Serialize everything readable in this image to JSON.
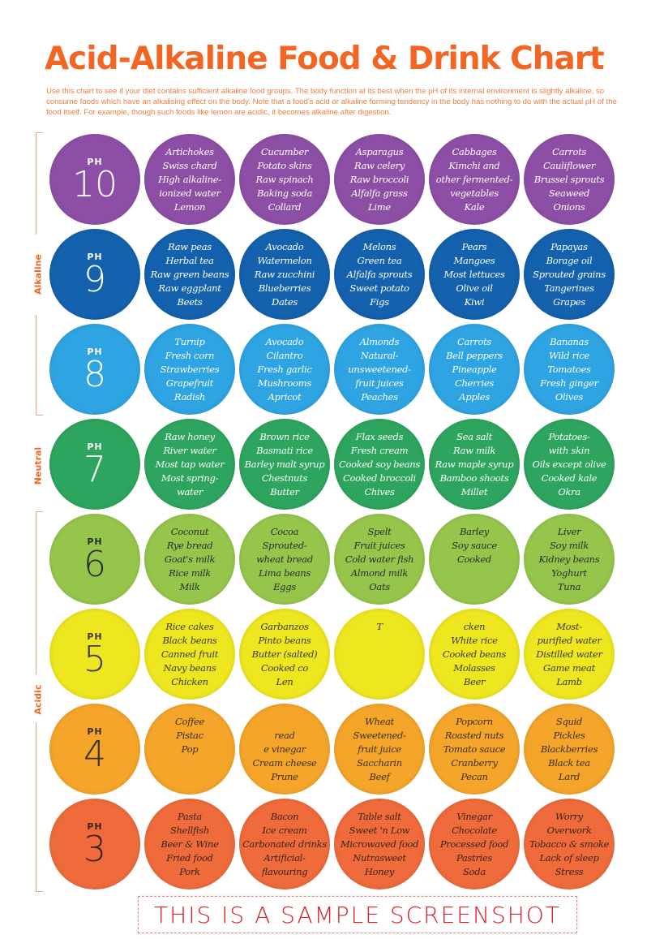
{
  "title": "Acid-Alkaline Food & Drink Chart",
  "intro": "Use this chart to see if your diet contains sufficient alkaline food groups. The body function at its best when the pH of its internal environment is slightly alkaline, so consume foods which have an alkalising effect on the body. Note that a food's acid or alkaline forming tendency in the body has nothing to do with the actual pH of the food itself. For example, though such foods like lemon are acidic, it becomes alkaline after digestion.",
  "side_labels": {
    "alkaline": "Alkaline",
    "neutral": "Neutral",
    "acidic": "Acidic"
  },
  "ph_prefix": "PH",
  "watermark": "THIS IS A SAMPLE SCREENSHOT",
  "rows": [
    {
      "ph": "10",
      "color": "#8d4fa6",
      "text_color": "#ffffff",
      "cells": [
        [
          "Artichokes",
          "Swiss chard",
          "High alkaline-",
          "ionized water",
          "Lemon"
        ],
        [
          "Cucumber",
          "Potato skins",
          "Raw spinach",
          "Baking soda",
          "Collard"
        ],
        [
          "Asparagus",
          "Raw celery",
          "Raw broccoli",
          "Alfalfa grass",
          "Lime"
        ],
        [
          "Cabbages",
          "Kimchi and",
          "other fermented-",
          "vegetables",
          "Kale"
        ],
        [
          "Carrots",
          "Cauliflower",
          "Brussel sprouts",
          "Seaweed",
          "Onions"
        ]
      ]
    },
    {
      "ph": "9",
      "color": "#1461ad",
      "text_color": "#ffffff",
      "cells": [
        [
          "Raw peas",
          "Herbal tea",
          "Raw green beans",
          "Raw eggplant",
          "Beets"
        ],
        [
          "Avocado",
          "Watermelon",
          "Raw zucchini",
          "Blueberries",
          "Dates"
        ],
        [
          "Melons",
          "Green tea",
          "Alfalfa sprouts",
          "Sweet potato",
          "Figs"
        ],
        [
          "Pears",
          "Mangoes",
          "Most lettuces",
          "Olive oil",
          "Kiwi"
        ],
        [
          "Papayas",
          "Borage oil",
          "Sprouted grains",
          "Tangerines",
          "Grapes"
        ]
      ]
    },
    {
      "ph": "8",
      "color": "#2fa4e2",
      "text_color": "#ffffff",
      "cells": [
        [
          "Turnip",
          "Fresh corn",
          "Strawberries",
          "Grapefruit",
          "Radish"
        ],
        [
          "Avocado",
          "Cilantro",
          "Fresh garlic",
          "Mushrooms",
          "Apricot"
        ],
        [
          "Almonds",
          "Natural-",
          "unsweetened-",
          "fruit juices",
          "Peaches"
        ],
        [
          "Carrots",
          "Bell peppers",
          "Pineapple",
          "Cherries",
          "Apples"
        ],
        [
          "Bananas",
          "Wild rice",
          "Tomatoes",
          "Fresh ginger",
          "Olives"
        ]
      ]
    },
    {
      "ph": "7",
      "color": "#2ea55e",
      "text_color": "#ffffff",
      "cells": [
        [
          "Raw honey",
          "River water",
          "Most tap water",
          "Most spring-",
          "water"
        ],
        [
          "Brown rice",
          "Basmati rice",
          "Barley malt syrup",
          "Chestnuts",
          "Butter"
        ],
        [
          "Flax seeds",
          "Fresh cream",
          "Cooked soy beans",
          "Cooked broccoli",
          "Chives"
        ],
        [
          "Sea salt",
          "Raw milk",
          "Raw maple syrup",
          "Bamboo shoots",
          "Millet"
        ],
        [
          "Potatoes-",
          "with skin",
          "Oils except olive",
          "Cooked kale",
          "Okra"
        ]
      ]
    },
    {
      "ph": "6",
      "color": "#95c64b",
      "text_color": "#2b2b2b",
      "cells": [
        [
          "Coconut",
          "Rye bread",
          "Goat's milk",
          "Rice milk",
          "Milk"
        ],
        [
          "Cocoa",
          "Sprouted-",
          "wheat bread",
          "Lima beans",
          "Eggs"
        ],
        [
          "Spelt",
          "Fruit juices",
          "Cold water fish",
          "Almond milk",
          "Oats"
        ],
        [
          "Barley",
          "Soy sauce",
          "Cooked",
          "",
          ""
        ],
        [
          "Liver",
          "Soy milk",
          "Kidney beans",
          "Yoghurt",
          "Tuna"
        ]
      ]
    },
    {
      "ph": "5",
      "color": "#eee61e",
      "text_color": "#3a3a2a",
      "cells": [
        [
          "Rice cakes",
          "Black beans",
          "Canned fruit",
          "Navy beans",
          "Chicken"
        ],
        [
          "Garbanzos",
          "Pinto beans",
          "Butter (salted)",
          "Cooked co",
          "Len"
        ],
        [
          "T",
          "",
          "",
          "",
          ""
        ],
        [
          "cken",
          "White rice",
          "Cooked beans",
          "Molasses",
          "Beer"
        ],
        [
          "Most-",
          "purified water",
          "Distilled water",
          "Game meat",
          "Lamb"
        ]
      ]
    },
    {
      "ph": "4",
      "color": "#f4a52a",
      "text_color": "#3a3020",
      "cells": [
        [
          "Coffee",
          "Pistac",
          "Pop",
          "",
          ""
        ],
        [
          "",
          "read",
          "e vinegar",
          "Cream cheese",
          "Prune"
        ],
        [
          "Wheat",
          "Sweetened-",
          "fruit juice",
          "Saccharin",
          "Beef"
        ],
        [
          "Popcorn",
          "Roasted nuts",
          "Tomato sauce",
          "Cranberry",
          "Pecan"
        ],
        [
          "Squid",
          "Pickles",
          "Blackberries",
          "Black tea",
          "Lard"
        ]
      ]
    },
    {
      "ph": "3",
      "color": "#ef6b3b",
      "text_color": "#3a2418",
      "cells": [
        [
          "Pasta",
          "Shellfish",
          "Beer & Wine",
          "Fried food",
          "Pork"
        ],
        [
          "Bacon",
          "Ice cream",
          "Carbonated drinks",
          "Artificial-",
          "flavouring"
        ],
        [
          "Table salt",
          "Sweet 'n Low",
          "Microwaved food",
          "Nutrasweet",
          "Honey"
        ],
        [
          "Vinegar",
          "Chocolate",
          "Processed food",
          "Pastries",
          "Soda"
        ],
        [
          "Worry",
          "Overwork",
          "Tobacco & smoke",
          "Lack of sleep",
          "Stress"
        ]
      ]
    }
  ]
}
